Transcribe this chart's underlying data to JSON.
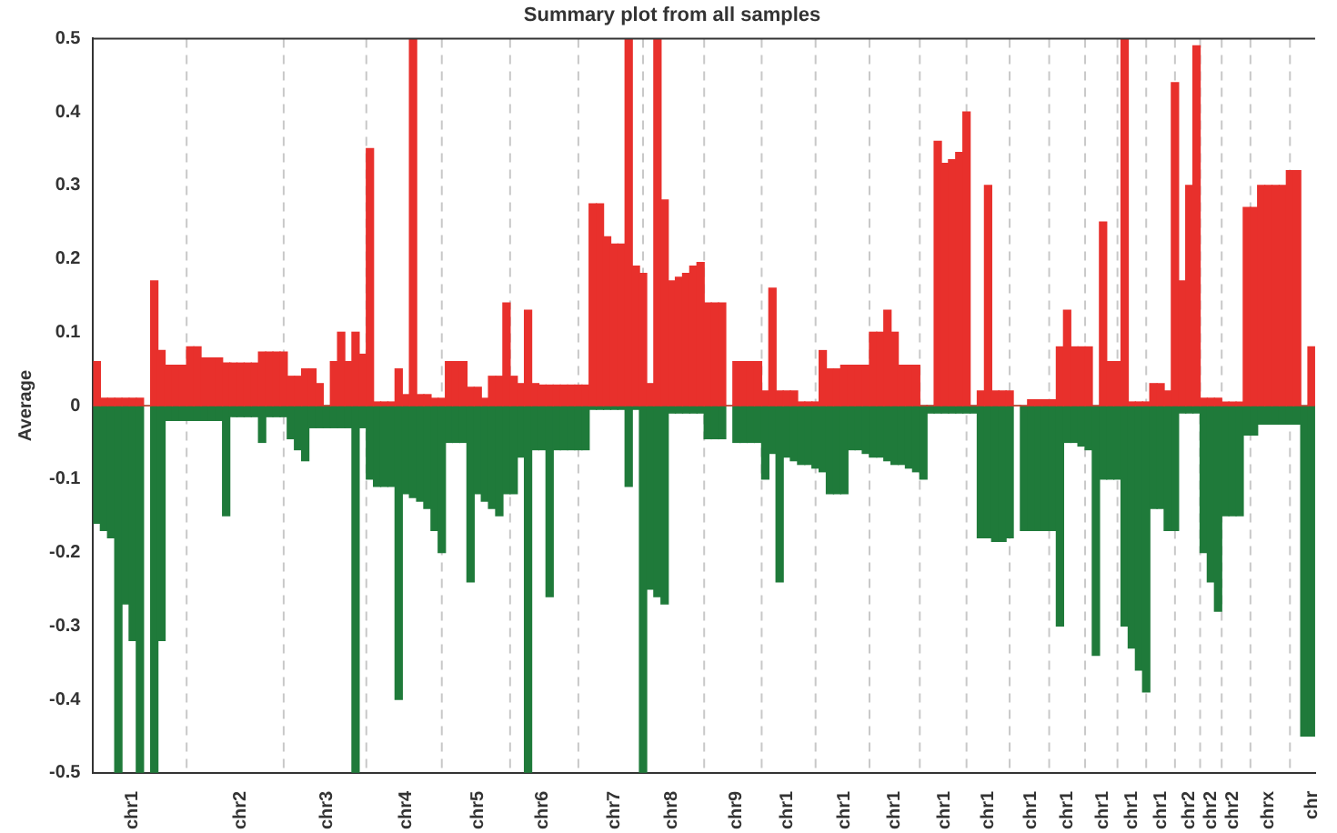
{
  "chart_data": {
    "type": "bar",
    "title": "Summary plot from all samples",
    "ylabel": "Average",
    "categories": [
      null,
      null,
      null,
      null,
      null,
      "chr1",
      null,
      null,
      null,
      null,
      null,
      null,
      null,
      null,
      null,
      null,
      null,
      null,
      null,
      null,
      "chr2",
      null,
      null,
      null,
      null,
      null,
      null,
      null,
      null,
      null,
      null,
      null,
      "chr3",
      null,
      null,
      null,
      null,
      null,
      null,
      null,
      null,
      null,
      null,
      "chr4",
      null,
      null,
      null,
      null,
      null,
      null,
      null,
      null,
      null,
      "chr5",
      null,
      null,
      null,
      null,
      null,
      null,
      null,
      null,
      "chr6",
      null,
      null,
      null,
      null,
      null,
      null,
      null,
      null,
      null,
      "chr7",
      null,
      null,
      null,
      null,
      null,
      null,
      null,
      "chr8",
      null,
      null,
      null,
      null,
      null,
      null,
      null,
      null,
      "chr9",
      null,
      null,
      null,
      null,
      null,
      null,
      "chr1",
      null,
      null,
      null,
      null,
      null,
      null,
      null,
      "chr1",
      null,
      null,
      null,
      null,
      null,
      null,
      "chr1",
      null,
      null,
      null,
      null,
      null,
      null,
      "chr1",
      null,
      null,
      null,
      null,
      null,
      "chr1",
      null,
      null,
      null,
      null,
      null,
      "chr1",
      null,
      null,
      null,
      null,
      "chr1",
      null,
      null,
      null,
      null,
      "chr1",
      null,
      null,
      null,
      "chr1",
      null,
      null,
      null,
      "chr1",
      null,
      null,
      null,
      "chr2",
      null,
      null,
      "chr2",
      null,
      null,
      "chr2",
      null,
      null,
      null,
      null,
      "chrx",
      null,
      null,
      null,
      null,
      null,
      "chr"
    ],
    "ylim": [
      -0.5,
      0.5
    ],
    "yticks": [
      -0.5,
      -0.4,
      -0.3,
      -0.2,
      -0.1,
      0,
      0.1,
      0.2,
      0.3,
      0.4,
      0.5
    ],
    "stacked": true,
    "series": [
      {
        "color": "#e8302c",
        "values": [
          0.06,
          0.01,
          0.01,
          0.01,
          0.01,
          0.01,
          0.01,
          0,
          0.17,
          0.075,
          0.055,
          0.055,
          0.055,
          0.08,
          0.08,
          0.065,
          0.065,
          0.065,
          0.058,
          0.058,
          0.058,
          0.058,
          0.058,
          0.073,
          0.073,
          0.073,
          0.073,
          0.04,
          0.04,
          0.05,
          0.05,
          0.03,
          0,
          0.06,
          0.1,
          0.06,
          0.1,
          0.07,
          0.35,
          0.005,
          0.005,
          0.005,
          0.05,
          0.015,
          0.5,
          0.015,
          0.015,
          0.01,
          0.01,
          0.06,
          0.06,
          0.06,
          0.025,
          0.025,
          0.01,
          0.04,
          0.04,
          0.14,
          0.04,
          0.03,
          0.13,
          0.03,
          0.028,
          0.028,
          0.028,
          0.028,
          0.028,
          0.028,
          0.028,
          0.275,
          0.275,
          0.23,
          0.22,
          0.22,
          0.5,
          0.19,
          0.18,
          0.03,
          0.5,
          0.28,
          0.17,
          0.175,
          0.18,
          0.19,
          0.195,
          0.14,
          0.14,
          0.14,
          0,
          0.06,
          0.06,
          0.06,
          0.06,
          0.02,
          0.16,
          0.02,
          0.02,
          0.02,
          0.005,
          0.005,
          0.005,
          0.075,
          0.05,
          0.05,
          0.055,
          0.055,
          0.055,
          0.055,
          0.1,
          0.1,
          0.13,
          0.1,
          0.055,
          0.055,
          0.055,
          0,
          0,
          0.36,
          0.33,
          0.335,
          0.345,
          0.4,
          0,
          0.02,
          0.3,
          0.02,
          0.02,
          0.02,
          0,
          0,
          0.008,
          0.008,
          0.008,
          0.008,
          0.08,
          0.13,
          0.08,
          0.08,
          0.08,
          0,
          0.25,
          0.06,
          0.06,
          0.5,
          0.005,
          0.005,
          0.005,
          0.03,
          0.03,
          0.02,
          0.44,
          0.17,
          0.3,
          0.49,
          0.01,
          0.01,
          0.01,
          0.005,
          0.005,
          0.005,
          0.27,
          0.27,
          0.3,
          0.3,
          0.3,
          0.3,
          0.32,
          0.32,
          0,
          0.08
        ]
      },
      {
        "color": "#1f7a3a",
        "values": [
          -0.16,
          -0.17,
          -0.18,
          -0.5,
          -0.27,
          -0.32,
          -0.5,
          0,
          -0.5,
          -0.32,
          -0.02,
          -0.02,
          -0.02,
          -0.02,
          -0.02,
          -0.02,
          -0.02,
          -0.02,
          -0.15,
          -0.015,
          -0.015,
          -0.015,
          -0.015,
          -0.05,
          -0.015,
          -0.015,
          -0.015,
          -0.045,
          -0.06,
          -0.075,
          -0.03,
          -0.03,
          -0.03,
          -0.03,
          -0.03,
          -0.03,
          -0.5,
          -0.03,
          -0.1,
          -0.11,
          -0.11,
          -0.11,
          -0.4,
          -0.12,
          -0.125,
          -0.13,
          -0.14,
          -0.17,
          -0.2,
          -0.05,
          -0.05,
          -0.05,
          -0.24,
          -0.12,
          -0.13,
          -0.14,
          -0.15,
          -0.12,
          -0.12,
          -0.07,
          -0.5,
          -0.06,
          -0.06,
          -0.26,
          -0.06,
          -0.06,
          -0.06,
          -0.06,
          -0.06,
          -0.005,
          -0.005,
          -0.005,
          -0.005,
          -0.005,
          -0.11,
          -0.005,
          -0.5,
          -0.25,
          -0.26,
          -0.27,
          -0.01,
          -0.01,
          -0.01,
          -0.01,
          -0.01,
          -0.045,
          -0.045,
          -0.045,
          0,
          -0.05,
          -0.05,
          -0.05,
          -0.05,
          -0.1,
          -0.065,
          -0.24,
          -0.07,
          -0.075,
          -0.08,
          -0.08,
          -0.085,
          -0.09,
          -0.12,
          -0.12,
          -0.12,
          -0.06,
          -0.06,
          -0.065,
          -0.07,
          -0.07,
          -0.075,
          -0.08,
          -0.08,
          -0.085,
          -0.09,
          -0.1,
          -0.01,
          -0.01,
          -0.01,
          -0.01,
          -0.01,
          -0.01,
          -0.01,
          -0.18,
          -0.18,
          -0.185,
          -0.185,
          -0.18,
          0,
          -0.17,
          -0.17,
          -0.17,
          -0.17,
          -0.17,
          -0.3,
          -0.05,
          -0.05,
          -0.055,
          -0.06,
          -0.34,
          -0.1,
          -0.1,
          -0.1,
          -0.3,
          -0.33,
          -0.36,
          -0.39,
          -0.14,
          -0.14,
          -0.17,
          -0.17,
          -0.01,
          -0.01,
          -0.01,
          -0.2,
          -0.24,
          -0.28,
          -0.15,
          -0.15,
          -0.15,
          -0.04,
          -0.04,
          -0.025,
          -0.025,
          -0.025,
          -0.025,
          -0.025,
          -0.025,
          -0.45,
          -0.45
        ]
      }
    ]
  }
}
